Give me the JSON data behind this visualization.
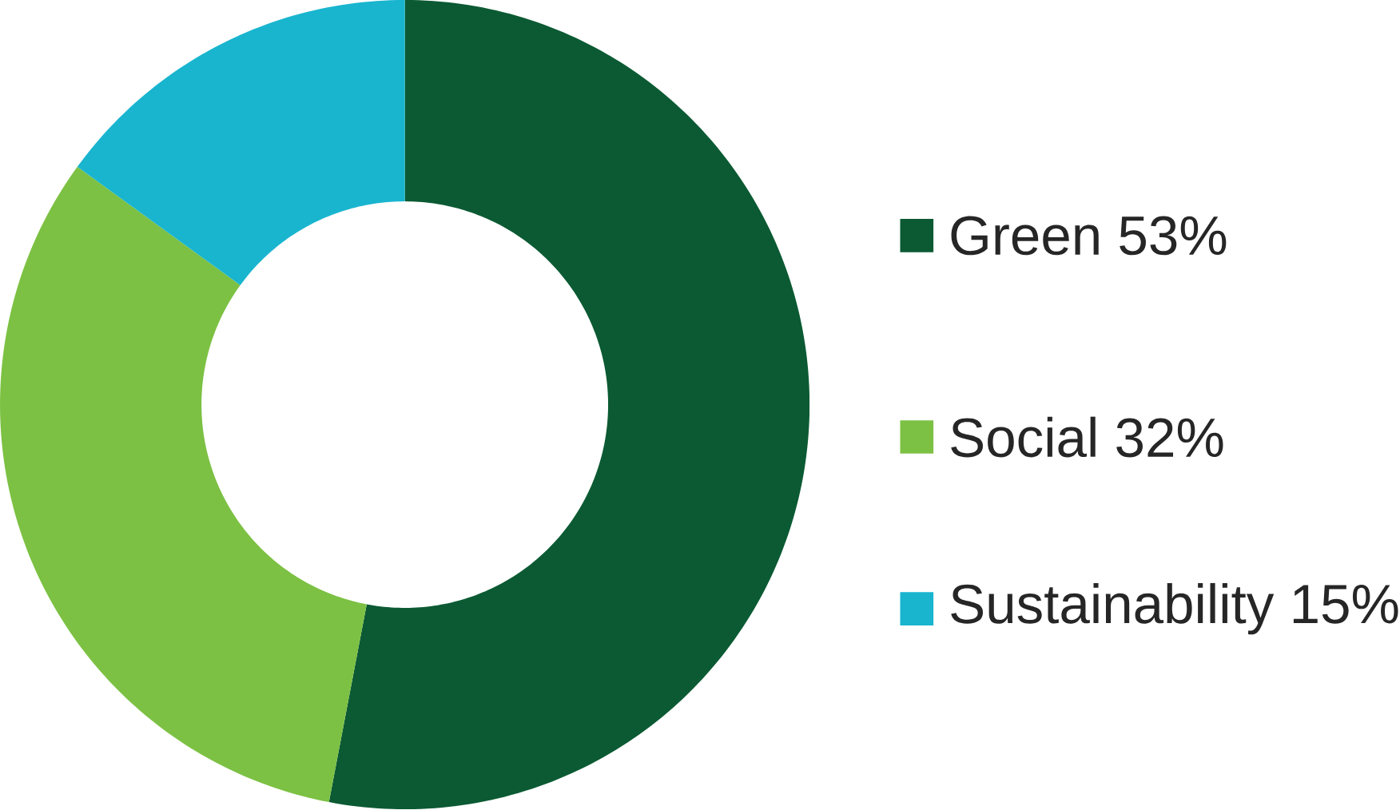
{
  "chart_data": {
    "type": "donut",
    "categories": [
      "Green",
      "Social",
      "Sustainability"
    ],
    "values": [
      53,
      32,
      15
    ],
    "value_labels": [
      "53%",
      "32%",
      "15%"
    ],
    "colors": [
      "#0b5a33",
      "#7cc143",
      "#19b5cf"
    ],
    "legend": "right"
  }
}
